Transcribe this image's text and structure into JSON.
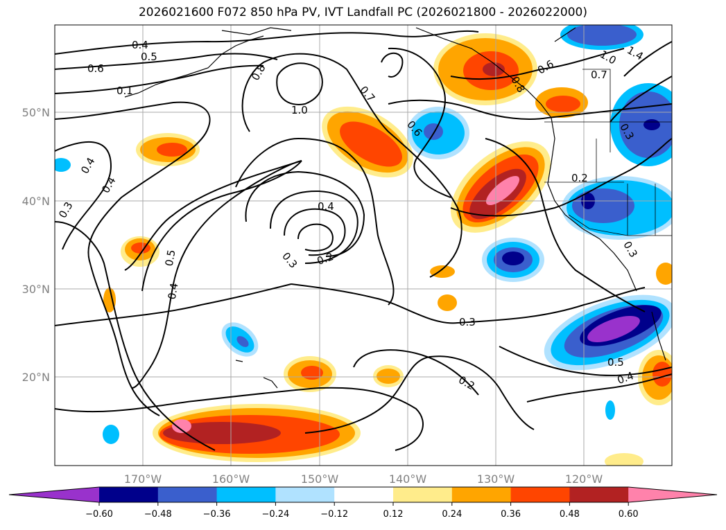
{
  "title": "2026021600 F072 850 hPa PV, IVT Landfall PC (2026021800 - 2026022000)",
  "lat_labels": [
    "50°N",
    "40°N",
    "30°N",
    "20°N"
  ],
  "lon_labels": [
    "170°W",
    "160°W",
    "150°W",
    "140°W",
    "130°W",
    "120°W"
  ],
  "colorbar": {
    "colors": [
      "#9932cc",
      "#00008b",
      "#3a5fcd",
      "#00bfff",
      "#b0e2ff",
      "#ffffff",
      "#ffec8b",
      "#ffa500",
      "#ff4500",
      "#b22222",
      "#ff82ab"
    ],
    "tick_labels": [
      "−0.60",
      "−0.48",
      "−0.36",
      "−0.24",
      "−0.12",
      "0.12",
      "0.24",
      "0.36",
      "0.48",
      "0.60"
    ]
  },
  "contour_labels": [
    "0.4",
    "0.5",
    "0.6",
    "0.1",
    "0.8",
    "1.0",
    "0.7",
    "0.6",
    "0.8",
    "1.0",
    "1.4",
    "0.6",
    "0.7",
    "0.3",
    "0.2",
    "0.4",
    "0.3",
    "0.4",
    "0.5",
    "0.4",
    "0.4",
    "0.3",
    "0.2",
    "0.3",
    "0.2",
    "0.5",
    "0.4",
    "0.3"
  ]
}
